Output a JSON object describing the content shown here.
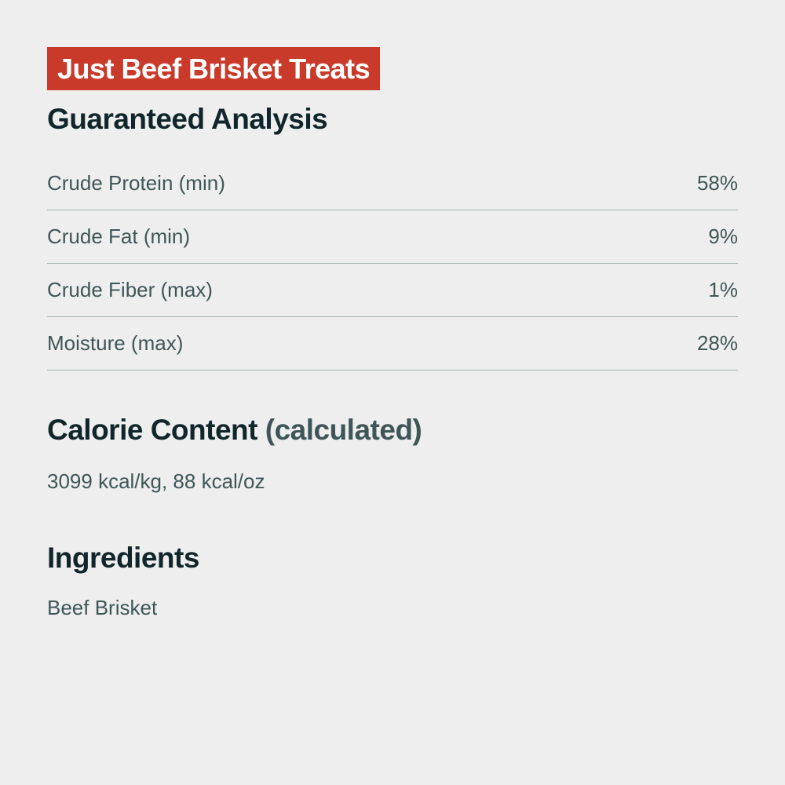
{
  "title": "Just Beef Brisket Treats",
  "colors": {
    "banner": "#c93a2b",
    "heading": "#10262b",
    "body_text": "#3f5659",
    "background": "#eeeeee"
  },
  "guaranteed_analysis": {
    "heading": "Guaranteed Analysis",
    "rows": [
      {
        "label": "Crude Protein (min)",
        "value": "58%"
      },
      {
        "label": "Crude Fat (min)",
        "value": "9%"
      },
      {
        "label": "Crude Fiber (max)",
        "value": "1%"
      },
      {
        "label": "Moisture (max)",
        "value": "28%"
      }
    ]
  },
  "calorie_content": {
    "heading": "Calorie Content",
    "heading_sub": "(calculated)",
    "value": "3099 kcal/kg, 88 kcal/oz"
  },
  "ingredients": {
    "heading": "Ingredients",
    "value": "Beef Brisket"
  }
}
